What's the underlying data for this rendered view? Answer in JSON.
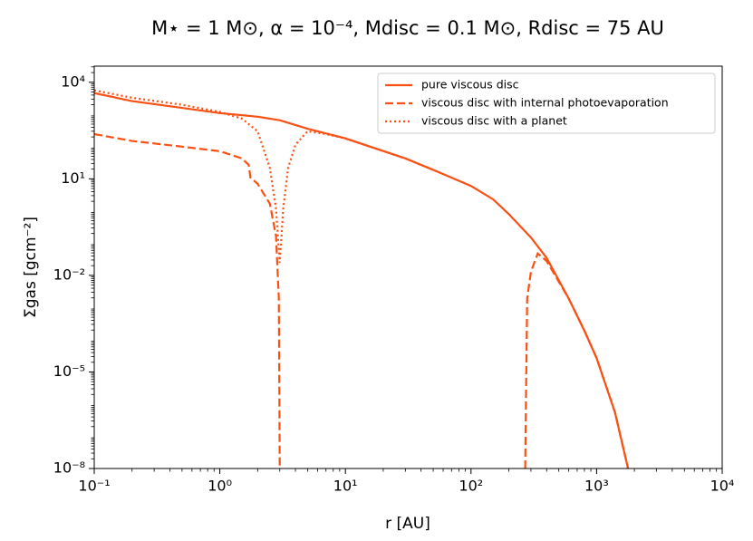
{
  "chart_data": {
    "type": "line",
    "title": "M⋆ = 1 M⊙,  α = 10⁻⁴,  Mdisc = 0.1 M⊙,  Rdisc = 75 AU",
    "x_label": "r [AU]",
    "y_label": "Σgas [gcm⁻²]",
    "xscale": "log",
    "yscale": "log",
    "xlim": [
      0.1,
      10000
    ],
    "ylim": [
      1e-08,
      31623
    ],
    "xticks": [
      {
        "value": 0.1,
        "label": "10⁻¹"
      },
      {
        "value": 1,
        "label": "10⁰"
      },
      {
        "value": 10,
        "label": "10¹"
      },
      {
        "value": 100,
        "label": "10²"
      },
      {
        "value": 1000,
        "label": "10³"
      },
      {
        "value": 10000,
        "label": "10⁴"
      }
    ],
    "yticks": [
      {
        "value": 1e-08,
        "label": "10⁻⁸"
      },
      {
        "value": 1e-05,
        "label": "10⁻⁵"
      },
      {
        "value": 0.01,
        "label": "10⁻²"
      },
      {
        "value": 10,
        "label": "10¹"
      },
      {
        "value": 10000,
        "label": "10⁴"
      }
    ],
    "grid": false,
    "legend": "upper right",
    "series": [
      {
        "name": "pure viscous disc",
        "color": "#fa5014",
        "style": "solid",
        "x": [
          0.1,
          0.2,
          0.5,
          1,
          2,
          3,
          5,
          10,
          30,
          50,
          100,
          150,
          200,
          300,
          400,
          600,
          800,
          1000,
          1400,
          1780
        ],
        "values": [
          4600,
          2600,
          1600,
          1100,
          850,
          660,
          360,
          180,
          43,
          19,
          6,
          2.3,
          0.8,
          0.15,
          0.035,
          0.0019,
          0.00019,
          2.7e-05,
          5.6e-07,
          1e-08
        ]
      },
      {
        "name": "viscous disc with internal photoevaporation",
        "color": "#fa5014",
        "style": "dashed",
        "x": [
          0.1,
          0.2,
          0.5,
          1,
          1.5,
          1.7,
          1.75,
          2,
          2.5,
          2.8,
          2.95,
          3.0,
          null,
          270,
          280,
          300,
          340,
          400,
          600,
          800,
          1000,
          1400,
          1780
        ],
        "values": [
          245,
          150,
          100,
          72,
          43,
          27,
          11,
          7,
          1.7,
          0.17,
          0.0019,
          1e-08,
          null,
          1e-08,
          0.0019,
          0.013,
          0.048,
          0.028,
          0.0019,
          0.00019,
          2.7e-05,
          5.6e-07,
          1e-08
        ]
      },
      {
        "name": "viscous disc with a planet",
        "color": "#fa5014",
        "style": "dotted",
        "x": [
          0.1,
          0.2,
          0.5,
          1,
          1.5,
          2,
          2.5,
          2.8,
          3,
          3.2,
          3.5,
          4,
          5,
          7,
          10,
          30,
          50
        ],
        "values": [
          5600,
          3300,
          2000,
          1200,
          740,
          300,
          22,
          1.2,
          0.025,
          1.2,
          22,
          115,
          300,
          245,
          180,
          43,
          19
        ]
      }
    ]
  }
}
